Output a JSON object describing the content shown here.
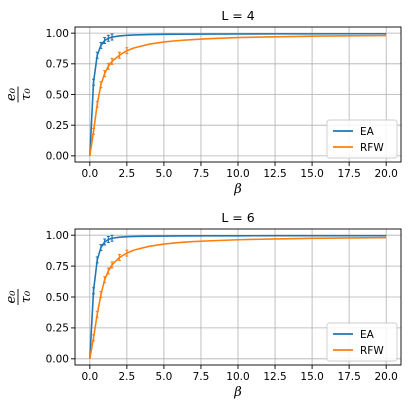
{
  "chart_data": [
    {
      "type": "line",
      "title": "L = 4",
      "xlabel": "β",
      "ylabel": {
        "numerator": "e₀",
        "denominator": "τ₀"
      },
      "xlim": [
        -1.0,
        21.0
      ],
      "ylim": [
        -0.05,
        1.05
      ],
      "xticks": [
        "0.0",
        "2.5",
        "5.0",
        "7.5",
        "10.0",
        "12.5",
        "15.0",
        "17.5",
        "20.0"
      ],
      "yticks": [
        "0.00",
        "0.25",
        "0.50",
        "0.75",
        "1.00"
      ],
      "grid": true,
      "legend_position": "bottom-right",
      "series": [
        {
          "name": "EA",
          "color": "#1f77b4",
          "x": [
            0.0,
            0.25,
            0.5,
            0.75,
            1.0,
            1.25,
            1.5,
            2.0,
            2.5,
            3.0,
            4.0,
            5.0,
            6.0,
            8.0,
            10.0,
            12.5,
            15.0,
            17.5,
            20.0
          ],
          "y": [
            0.0,
            0.6,
            0.82,
            0.9,
            0.94,
            0.958,
            0.968,
            0.977,
            0.982,
            0.985,
            0.988,
            0.99,
            0.991,
            0.992,
            0.993,
            0.994,
            0.994,
            0.995,
            0.995
          ],
          "error_x": [
            0.25,
            0.5,
            0.75,
            1.0,
            1.25,
            1.5
          ]
        },
        {
          "name": "RFW",
          "color": "#ff7f0e",
          "x": [
            0.0,
            0.25,
            0.5,
            0.75,
            1.0,
            1.25,
            1.5,
            2.0,
            2.5,
            3.0,
            4.0,
            5.0,
            6.0,
            7.0,
            8.0,
            10.0,
            12.5,
            15.0,
            17.5,
            20.0
          ],
          "y": [
            0.0,
            0.2,
            0.42,
            0.58,
            0.67,
            0.73,
            0.77,
            0.82,
            0.857,
            0.88,
            0.91,
            0.928,
            0.94,
            0.948,
            0.955,
            0.964,
            0.97,
            0.975,
            0.978,
            0.98
          ],
          "error_x": [
            0.25,
            0.5,
            0.75,
            1.0,
            1.25,
            1.5,
            2.0,
            2.5
          ]
        }
      ]
    },
    {
      "type": "line",
      "title": "L = 6",
      "xlabel": "β",
      "ylabel": {
        "numerator": "e₀",
        "denominator": "τ₀"
      },
      "xlim": [
        -1.0,
        21.0
      ],
      "ylim": [
        -0.05,
        1.05
      ],
      "xticks": [
        "0.0",
        "2.5",
        "5.0",
        "7.5",
        "10.0",
        "12.5",
        "15.0",
        "17.5",
        "20.0"
      ],
      "yticks": [
        "0.00",
        "0.25",
        "0.50",
        "0.75",
        "1.00"
      ],
      "grid": true,
      "legend_position": "bottom-right",
      "series": [
        {
          "name": "EA",
          "color": "#1f77b4",
          "x": [
            0.0,
            0.25,
            0.5,
            0.75,
            1.0,
            1.25,
            1.5,
            2.0,
            2.5,
            3.0,
            4.0,
            5.0,
            6.0,
            8.0,
            10.0,
            12.5,
            15.0,
            17.5,
            20.0
          ],
          "y": [
            0.0,
            0.55,
            0.8,
            0.9,
            0.945,
            0.965,
            0.975,
            0.984,
            0.988,
            0.99,
            0.992,
            0.993,
            0.994,
            0.995,
            0.995,
            0.996,
            0.996,
            0.996,
            0.996
          ],
          "error_x": [
            0.25,
            0.5,
            0.75,
            1.0,
            1.25,
            1.5
          ]
        },
        {
          "name": "RFW",
          "color": "#ff7f0e",
          "x": [
            0.0,
            0.25,
            0.5,
            0.75,
            1.0,
            1.25,
            1.5,
            2.0,
            2.5,
            3.0,
            4.0,
            5.0,
            6.0,
            7.0,
            8.0,
            10.0,
            12.5,
            15.0,
            17.5,
            20.0
          ],
          "y": [
            0.0,
            0.17,
            0.36,
            0.52,
            0.64,
            0.71,
            0.76,
            0.82,
            0.855,
            0.88,
            0.91,
            0.928,
            0.94,
            0.948,
            0.954,
            0.963,
            0.97,
            0.975,
            0.978,
            0.98
          ],
          "error_x": [
            0.25,
            0.5,
            0.75,
            1.0,
            1.25,
            1.5,
            2.0,
            2.5
          ]
        }
      ]
    }
  ]
}
